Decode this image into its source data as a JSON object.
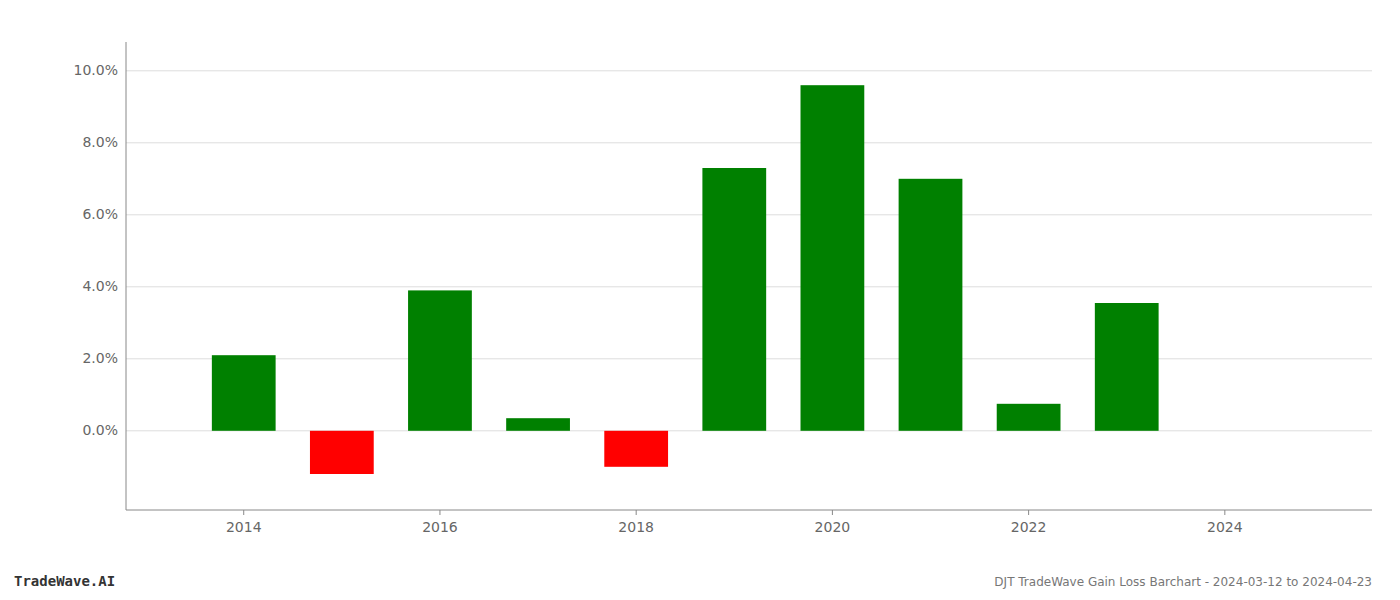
{
  "chart_data": {
    "type": "bar",
    "title": "DJT TradeWave Gain Loss Barchart - 2024-03-12 to 2024-04-23",
    "annotations": [
      "TradeWave.AI"
    ],
    "x": [
      2014,
      2015,
      2016,
      2017,
      2018,
      2019,
      2020,
      2021,
      2022,
      2023
    ],
    "values": [
      0.021,
      -0.012,
      0.039,
      0.0035,
      -0.01,
      0.073,
      0.096,
      0.07,
      0.0075,
      0.0355
    ],
    "colors": [
      "#008000",
      "#ff0000",
      "#008000",
      "#008000",
      "#ff0000",
      "#008000",
      "#008000",
      "#008000",
      "#008000",
      "#008000"
    ],
    "xlim": [
      2012.8,
      2025.5
    ],
    "xticks": [
      2014,
      2016,
      2018,
      2020,
      2022,
      2024
    ],
    "ylim": [
      -0.022,
      0.108
    ],
    "yticks": [
      {
        "value": 0.0,
        "label": "0.0%"
      },
      {
        "value": 0.02,
        "label": "2.0%"
      },
      {
        "value": 0.04,
        "label": "4.0%"
      },
      {
        "value": 0.06,
        "label": "6.0%"
      },
      {
        "value": 0.08,
        "label": "8.0%"
      },
      {
        "value": 0.1,
        "label": "10.0%"
      }
    ],
    "grid": true
  }
}
